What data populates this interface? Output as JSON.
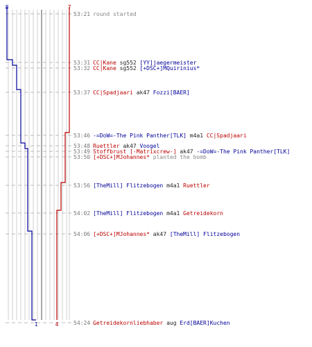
{
  "colors": {
    "team_red": "#bb0000",
    "team_blue": "#000099",
    "neutral": "#888888",
    "grid": "#cfcfcf"
  },
  "chart_data": {
    "type": "line",
    "team_labels": {
      "blue_start": "8",
      "red_start": "7",
      "blue_end": "1",
      "red_end": "4"
    },
    "series": [
      {
        "team": "blue",
        "start": 8,
        "values": [
          8,
          7,
          6,
          5,
          4,
          3,
          2,
          1,
          1,
          1
        ]
      },
      {
        "team": "red",
        "start": 7,
        "values": [
          7,
          7,
          6,
          6,
          6,
          6,
          5,
          4,
          4,
          4
        ]
      }
    ]
  },
  "events": [
    {
      "time": "53:21",
      "tokens": [
        {
          "t": "round started",
          "c": "g"
        }
      ]
    },
    {
      "time": "53:31",
      "tokens": [
        {
          "t": "CC|Kane",
          "c": "r"
        },
        {
          "t": " sg552 ",
          "c": "k"
        },
        {
          "t": "[YY]jaegermeister",
          "c": "b"
        }
      ]
    },
    {
      "time": "53:32",
      "tokens": [
        {
          "t": "CC|Kane",
          "c": "r"
        },
        {
          "t": " sg552 ",
          "c": "k"
        },
        {
          "t": "[+DSC+]MQuirinius*",
          "c": "b"
        }
      ]
    },
    {
      "time": "53:37",
      "tokens": [
        {
          "t": "CC|Spadjaari",
          "c": "r"
        },
        {
          "t": " ak47 ",
          "c": "k"
        },
        {
          "t": "Fozzi[BAER]",
          "c": "b"
        }
      ]
    },
    {
      "time": "53:46",
      "tokens": [
        {
          "t": "-=DoW=-The Pink Panther[TLK]",
          "c": "b"
        },
        {
          "t": " m4a1 ",
          "c": "k"
        },
        {
          "t": "CC|Spadjaari",
          "c": "r"
        }
      ]
    },
    {
      "time": "53:48",
      "tokens": [
        {
          "t": "Ruettler",
          "c": "r"
        },
        {
          "t": " ak47 ",
          "c": "k"
        },
        {
          "t": "Voogel",
          "c": "b"
        }
      ]
    },
    {
      "time": "53:49",
      "tokens": [
        {
          "t": "Stoffbrust [-Matrixcrew-]",
          "c": "r"
        },
        {
          "t": " ak47 ",
          "c": "k"
        },
        {
          "t": "-=DoW=-The Pink Panther[TLK]",
          "c": "b"
        }
      ]
    },
    {
      "time": "53:50",
      "tokens": [
        {
          "t": "[+DSC+]MJohannes*",
          "c": "r"
        },
        {
          "t": " planted the bomb",
          "c": "g"
        }
      ]
    },
    {
      "time": "53:56",
      "tokens": [
        {
          "t": "[TheMill] Flitzebogen",
          "c": "b"
        },
        {
          "t": " m4a1 ",
          "c": "k"
        },
        {
          "t": "Ruettler",
          "c": "r"
        }
      ]
    },
    {
      "time": "54:02",
      "tokens": [
        {
          "t": "[TheMill] Flitzebogen",
          "c": "b"
        },
        {
          "t": " m4a1 ",
          "c": "k"
        },
        {
          "t": "Getreidekorn",
          "c": "r"
        }
      ]
    },
    {
      "time": "54:06",
      "tokens": [
        {
          "t": "[+DSC+]MJohannes*",
          "c": "r"
        },
        {
          "t": " ak47 ",
          "c": "k"
        },
        {
          "t": "[TheMill] Flitzebogen",
          "c": "b"
        }
      ]
    },
    {
      "time": "54:24",
      "tokens": [
        {
          "t": "Getreidekornliebhaber",
          "c": "r"
        },
        {
          "t": " aug ",
          "c": "k"
        },
        {
          "t": "Erd[BAER]Kuchen",
          "c": "b"
        }
      ]
    }
  ]
}
